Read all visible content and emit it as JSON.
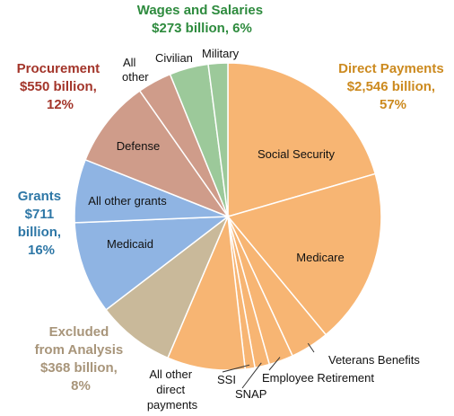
{
  "chart_data": {
    "type": "pie",
    "start_angle_deg": 0,
    "direction": "clockwise",
    "slices": [
      {
        "label": "Social Security",
        "category": "Direct Payments",
        "share": 0.2
      },
      {
        "label": "Medicare",
        "category": "Direct Payments",
        "share": 0.18
      },
      {
        "label": "Veterans Benefits",
        "category": "Direct Payments",
        "share": 0.04
      },
      {
        "label": "Employee Retirement",
        "category": "Direct Payments",
        "share": 0.025
      },
      {
        "label": "SNAP",
        "category": "Direct Payments",
        "share": 0.015
      },
      {
        "label": "SSI",
        "category": "Direct Payments",
        "share": 0.01
      },
      {
        "label": "All other direct payments",
        "category": "Direct Payments",
        "share": 0.08
      },
      {
        "label": "",
        "category": "Excluded from Analysis",
        "share": 0.08
      },
      {
        "label": "Medicaid",
        "category": "Grants",
        "share": 0.095
      },
      {
        "label": "All other grants",
        "category": "Grants",
        "share": 0.065
      },
      {
        "label": "Defense",
        "category": "Procurement",
        "share": 0.09
      },
      {
        "label": "All other",
        "category": "Procurement",
        "share": 0.035
      },
      {
        "label": "Civilian",
        "category": "Wages and Salaries",
        "share": 0.04
      },
      {
        "label": "Military",
        "category": "Wages and Salaries",
        "share": 0.02
      }
    ],
    "categories": [
      {
        "name": "Direct Payments",
        "title_lines": [
          "Direct Payments",
          "$2,546 billion,",
          "57%"
        ],
        "value_billion": 2546,
        "percent": 57,
        "color": "#f7b573",
        "title_color": "#cc8a1f"
      },
      {
        "name": "Excluded from Analysis",
        "title_lines": [
          "Excluded",
          "from Analysis",
          "$368 billion,",
          "8%"
        ],
        "value_billion": 368,
        "percent": 8,
        "color": "#c9b99a",
        "title_color": "#a8957a"
      },
      {
        "name": "Grants",
        "title_lines": [
          "Grants",
          "$711",
          "billion,",
          "16%"
        ],
        "value_billion": 711,
        "percent": 16,
        "color": "#8fb4e3",
        "title_color": "#2e77a6"
      },
      {
        "name": "Procurement",
        "title_lines": [
          "Procurement",
          "$550 billion,",
          "12%"
        ],
        "value_billion": 550,
        "percent": 12,
        "color": "#cf9c8a",
        "title_color": "#a3352a"
      },
      {
        "name": "Wages and Salaries",
        "title_lines": [
          "Wages and Salaries",
          "$273 billion, 6%"
        ],
        "value_billion": 273,
        "percent": 6,
        "color": "#9cc99a",
        "title_color": "#2e8b3e"
      }
    ],
    "segment_label_lines": {
      "all_other_direct": [
        "All other",
        "direct",
        "payments"
      ],
      "all_other_procurement": [
        "All",
        "other"
      ]
    }
  }
}
